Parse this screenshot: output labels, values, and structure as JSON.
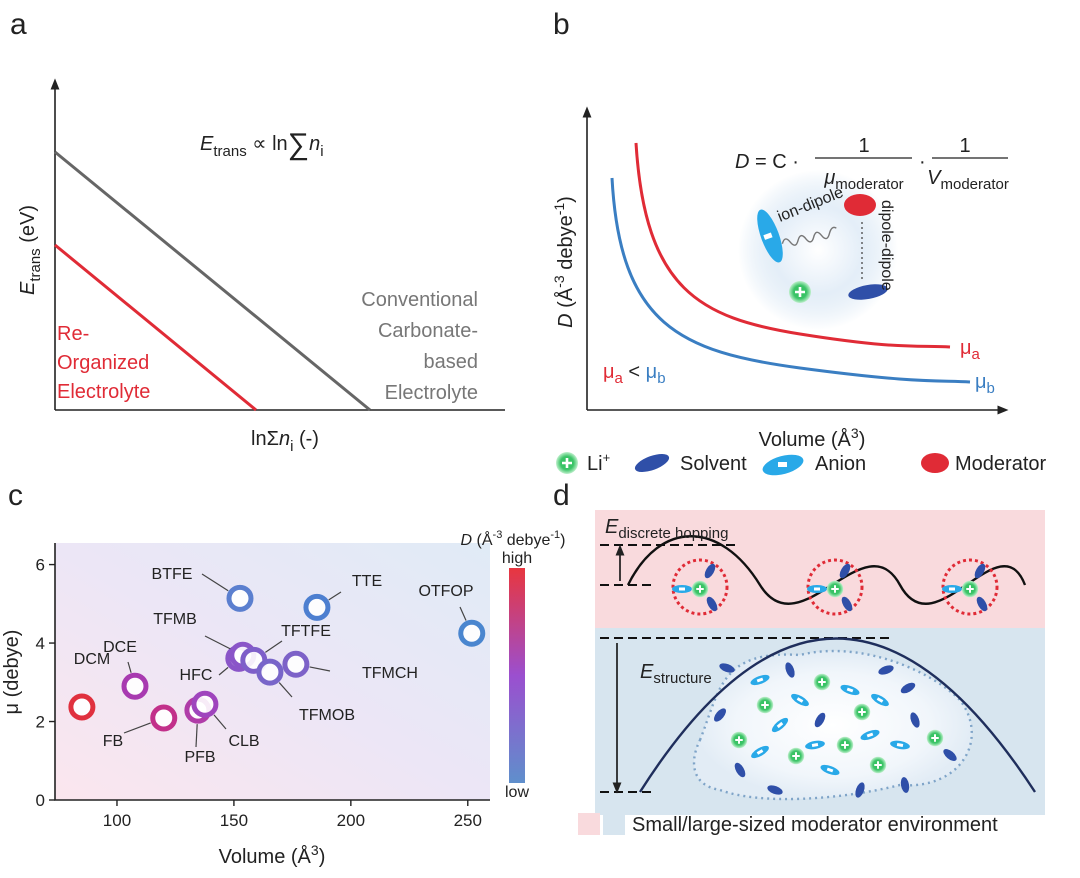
{
  "panel_a": {
    "label": "a",
    "y_label": {
      "main": "E",
      "sub": "trans",
      "rest": " (eV)"
    },
    "x_label": {
      "main": "lnΣ",
      "italic": "n",
      "sub": "i",
      "rest": " (-)"
    },
    "formula": {
      "main": "E",
      "sub": "trans",
      "rel": " ∝ ln",
      "sum": "∑",
      "italic": "n",
      "sub2": "i"
    },
    "red_text": [
      "Re-",
      "Organized",
      "Electrolyte"
    ],
    "gray_text": [
      "Conventional",
      "Carbonate-",
      "based",
      "Electrolyte"
    ]
  },
  "panel_b": {
    "label": "b",
    "formula": {
      "lhs": "D",
      "eq": " = C ·",
      "num1": "1",
      "den1_main": "μ",
      "den1_sub": "moderator",
      "dot": "·",
      "num2": "1",
      "den2_main": "V",
      "den2_sub": "moderator"
    },
    "y_label": {
      "main": "D",
      "rest": " (Å",
      "sup": "-3",
      "rest2": " debye",
      "sup2": "-1",
      "end": ")"
    },
    "x_label": {
      "main": "Volume (Å",
      "sup": "3",
      "end": ")"
    },
    "ion_dipole": "ion-dipole",
    "dipole_dipole": "dipole-dipole",
    "mu_a": {
      "main": "μ",
      "sub": "a"
    },
    "mu_b": {
      "main": "μ",
      "sub": "b"
    },
    "compare": {
      "m1": "μ",
      "s1": "a",
      "op": " < ",
      "m2": "μ",
      "s2": "b"
    },
    "legend": {
      "li": "Li",
      "li_sup": "+",
      "solvent": "Solvent",
      "anion": "Anion",
      "moderator": "Moderator"
    }
  },
  "chart_data": {
    "type": "scatter",
    "panel_label": "c",
    "x_label": {
      "main": "Volume (Å",
      "sup": "3",
      "end": ")"
    },
    "y_label": "μ (debye)",
    "labels": [
      "DCM",
      "DCE",
      "FB",
      "PFB",
      "CLB",
      "HFC",
      "TFMB",
      "TFTFE",
      "TFMOB",
      "TFMCH",
      "BTFE",
      "TTE",
      "OTFOP"
    ],
    "x": [
      85,
      107.7,
      120,
      134.6,
      137.6,
      152.1,
      153.8,
      158.5,
      165.4,
      176.5,
      152.6,
      185.5,
      251.7
    ],
    "y": [
      2.37,
      2.9,
      2.09,
      2.29,
      2.44,
      3.61,
      3.69,
      3.56,
      3.26,
      3.46,
      5.14,
      4.91,
      4.25
    ],
    "colors": [
      "#e0303e",
      "#a83ab0",
      "#c2308a",
      "#b03ca8",
      "#9f45bd",
      "#8a55c8",
      "#8a55c8",
      "#7e5fc9",
      "#7865c9",
      "#7d62c8",
      "#5b7fcf",
      "#4d7fd0",
      "#4a86cf"
    ],
    "xlim": [
      73.5,
      259.5
    ],
    "ylim": [
      0,
      6.55
    ],
    "xticks": [
      100,
      150,
      200,
      250
    ],
    "yticks": [
      0,
      2,
      4,
      6
    ],
    "colorbar": {
      "title": {
        "main": "D",
        "rest": " (Å",
        "sup": "-3",
        "rest2": " debye",
        "sup2": "-1",
        "end": ")"
      },
      "high": "high",
      "low": "low",
      "colors": [
        "#e8363f",
        "#9b4fcf",
        "#5f8fcc"
      ]
    }
  },
  "panel_d": {
    "label": "d",
    "hopping": {
      "main": "E",
      "sub": "discrete hopping"
    },
    "structure": {
      "main": "E",
      "sub": "structure"
    },
    "legend": "Small/large-sized moderator environment"
  }
}
